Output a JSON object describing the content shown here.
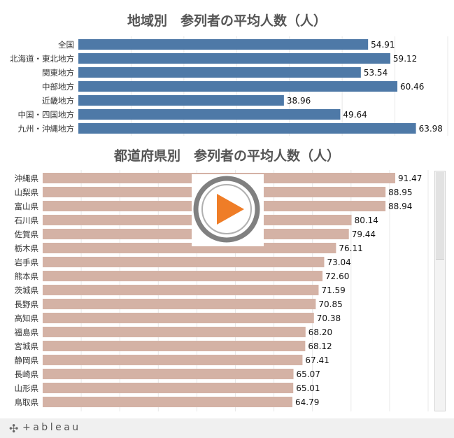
{
  "chart_data": [
    {
      "type": "bar",
      "orientation": "horizontal",
      "title": "地域別　参列者の平均人数（人）",
      "categories": [
        "全国",
        "北海道・東北地方",
        "関東地方",
        "中部地方",
        "近畿地方",
        "中国・四国地方",
        "九州・沖縄地方"
      ],
      "values": [
        54.91,
        59.12,
        53.54,
        60.46,
        38.96,
        49.64,
        63.98
      ],
      "value_labels": [
        "54.91",
        "59.12",
        "53.54",
        "60.46",
        "38.96",
        "49.64",
        "63.98"
      ],
      "color": "#4e79a7",
      "xlim": [
        0,
        70
      ],
      "grid": true
    },
    {
      "type": "bar",
      "orientation": "horizontal",
      "title": "都道府県別　参列者の平均人数（人）",
      "categories": [
        "沖縄県",
        "山梨県",
        "富山県",
        "石川県",
        "佐賀県",
        "栃木県",
        "岩手県",
        "熊本県",
        "茨城県",
        "長野県",
        "高知県",
        "福島県",
        "宮城県",
        "静岡県",
        "長崎県",
        "山形県",
        "鳥取県"
      ],
      "values": [
        91.47,
        88.95,
        88.94,
        80.14,
        79.44,
        76.11,
        73.04,
        72.6,
        71.59,
        70.85,
        70.38,
        68.2,
        68.12,
        67.41,
        65.07,
        65.01,
        64.79
      ],
      "value_labels": [
        "91.47",
        "88.95",
        "88.94",
        "80.14",
        "79.44",
        "76.11",
        "73.04",
        "72.60",
        "71.59",
        "70.85",
        "70.38",
        "68.20",
        "68.12",
        "67.41",
        "65.07",
        "65.01",
        "64.79"
      ],
      "color": "#d4b2a5",
      "xlim": [
        0,
        100
      ],
      "grid": true
    }
  ],
  "footer": {
    "logo_text": "+ableau",
    "logo_mark": "✣"
  },
  "colors": {
    "play_ring": "#808080",
    "play_triangle": "#ef7d27"
  },
  "icons": {
    "play": "play-button-icon"
  }
}
